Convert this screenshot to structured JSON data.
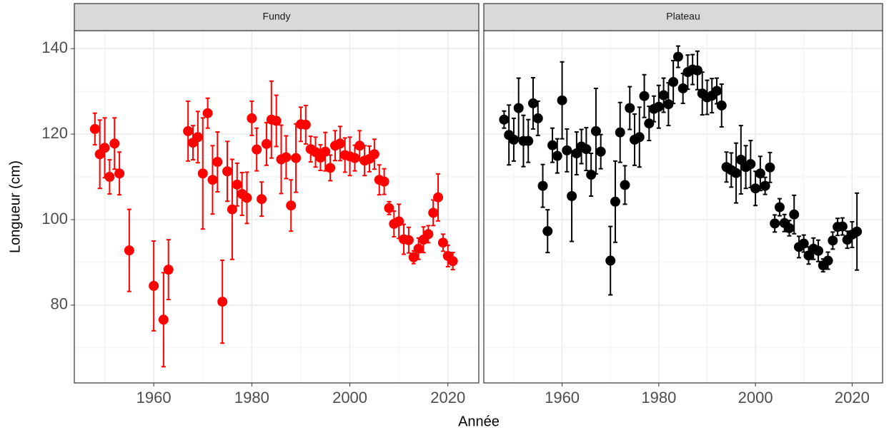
{
  "chart_data": {
    "type": "scatter",
    "xlabel": "Année",
    "ylabel": "Longueur (cm)",
    "xlim": [
      1943.8,
      2026.3
    ],
    "ylim": [
      61.8,
      144.2
    ],
    "xticks": [
      1960,
      1980,
      2000,
      2020
    ],
    "yticks": [
      80,
      100,
      120,
      140
    ],
    "grid": true,
    "panels": [
      {
        "title": "Fundy",
        "color": "#ff0000",
        "x": [
          1948,
          1949,
          1950,
          1951,
          1952,
          1953,
          1955,
          1960,
          1962,
          1963,
          1967,
          1968,
          1969,
          1970,
          1971,
          1972,
          1973,
          1974,
          1975,
          1976,
          1977,
          1978,
          1979,
          1980,
          1981,
          1982,
          1983,
          1984,
          1985,
          1986,
          1987,
          1988,
          1989,
          1990,
          1991,
          1992,
          1993,
          1994,
          1995,
          1996,
          1997,
          1998,
          1999,
          2000,
          2001,
          2002,
          2003,
          2004,
          2005,
          2006,
          2007,
          2008,
          2009,
          2010,
          2011,
          2012,
          2013,
          2014,
          2015,
          2016,
          2017,
          2018,
          2019,
          2020,
          2021
        ],
        "values": [
          121.2,
          115.3,
          116.8,
          110,
          117.8,
          110.8,
          92.8,
          84.5,
          76.6,
          88.3,
          120.7,
          118,
          119.3,
          110.8,
          124.9,
          109.3,
          113.5,
          80.8,
          111.3,
          102.4,
          108.2,
          106,
          105.1,
          123.7,
          116.4,
          104.8,
          117.7,
          123.4,
          123.1,
          114.1,
          114.6,
          103.3,
          114.4,
          122.3,
          122.2,
          116.5,
          115.8,
          114.5,
          115.9,
          112.1,
          117.3,
          117.8,
          115.1,
          114.8,
          114.4,
          117.3,
          113.8,
          114.2,
          115.3,
          109.3,
          108.9,
          102.7,
          99,
          99.6,
          95.4,
          95.2,
          91.2,
          93.2,
          95.3,
          96.6,
          101.6,
          105.2,
          94.6,
          91.5,
          90.3
        ],
        "errors": [
          3.7,
          8,
          7,
          4,
          6,
          5,
          9.6,
          10.5,
          11,
          7,
          7,
          4,
          6,
          13,
          3.5,
          8,
          7,
          9.7,
          7,
          11.7,
          5,
          5,
          6,
          4,
          5,
          4,
          5,
          9,
          6,
          8,
          5,
          6,
          8,
          4,
          4.5,
          3,
          3.5,
          3,
          4.5,
          3,
          3.5,
          4,
          4,
          4.5,
          3,
          3.5,
          3.5,
          3,
          3.5,
          3.5,
          3,
          1.5,
          3,
          4,
          3.5,
          3,
          1.5,
          2.5,
          3,
          2,
          3,
          5.5,
          2,
          2.5,
          2
        ]
      },
      {
        "title": "Plateau",
        "color": "#000000",
        "x": [
          1948,
          1949,
          1950,
          1951,
          1952,
          1953,
          1954,
          1955,
          1956,
          1957,
          1958,
          1959,
          1960,
          1961,
          1962,
          1963,
          1964,
          1965,
          1966,
          1967,
          1968,
          1970,
          1971,
          1972,
          1973,
          1974,
          1975,
          1976,
          1977,
          1978,
          1979,
          1980,
          1981,
          1982,
          1983,
          1984,
          1985,
          1986,
          1987,
          1988,
          1989,
          1990,
          1991,
          1992,
          1993,
          1994,
          1995,
          1996,
          1997,
          1998,
          1999,
          2000,
          2001,
          2002,
          2003,
          2004,
          2005,
          2006,
          2007,
          2008,
          2009,
          2010,
          2011,
          2012,
          2013,
          2014,
          2015,
          2016,
          2017,
          2018,
          2019,
          2020,
          2021
        ],
        "values": [
          123.4,
          119.8,
          118.7,
          126.1,
          118.4,
          118.4,
          127.2,
          123.7,
          107.9,
          97.3,
          117.4,
          114.9,
          127.9,
          116.2,
          105.5,
          115.5,
          117.1,
          116.5,
          110.5,
          120.7,
          115.9,
          90.4,
          104.2,
          120.4,
          108.1,
          126.1,
          118.7,
          119.3,
          128.9,
          122.5,
          125.9,
          126.4,
          129.1,
          127,
          132.2,
          138.1,
          130.7,
          134.5,
          135.1,
          134.9,
          129.5,
          128.6,
          129,
          130.1,
          126.7,
          112.3,
          111.6,
          110.9,
          114,
          112.3,
          113,
          107.3,
          110.8,
          107.9,
          112.2,
          99.1,
          102.9,
          99.2,
          98,
          101.2,
          93.6,
          94.4,
          91.6,
          93.2,
          92.7,
          89.3,
          90.4,
          95.1,
          98.3,
          98.4,
          95.3,
          96.5,
          97.2
        ],
        "errors": [
          2,
          7,
          5,
          7,
          6,
          5,
          6,
          4,
          5,
          5,
          4,
          4,
          9,
          5,
          10.6,
          5,
          4,
          5,
          5,
          10,
          4,
          8,
          9.5,
          7,
          4.5,
          5,
          6,
          7,
          5,
          4,
          3,
          5,
          4,
          5,
          5,
          2.5,
          3.5,
          4,
          3.5,
          4.5,
          5,
          4,
          4,
          3,
          5,
          3.5,
          4,
          7,
          8,
          5,
          5.5,
          4,
          4,
          2,
          3.5,
          2,
          2,
          2,
          1.8,
          4.5,
          2.5,
          2,
          2,
          2.5,
          2.5,
          1.5,
          2,
          2,
          2,
          2,
          2,
          3,
          9
        ]
      }
    ]
  }
}
